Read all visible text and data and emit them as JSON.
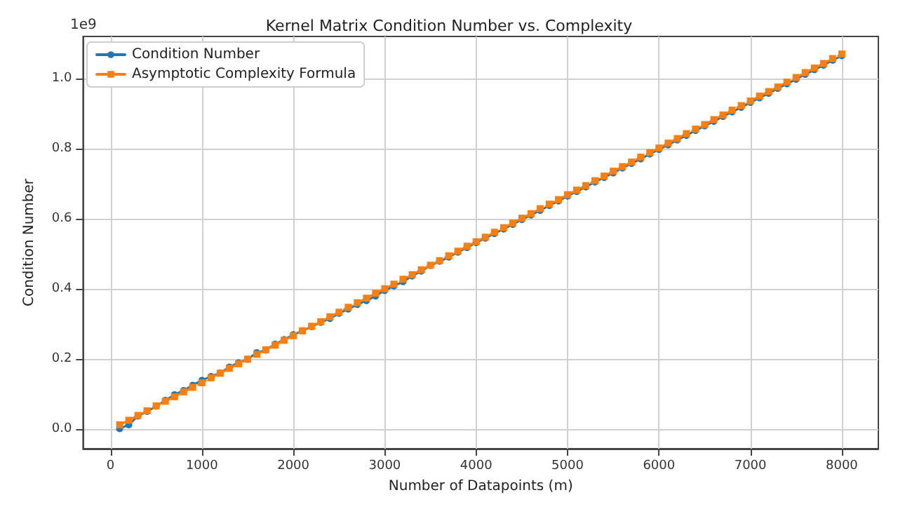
{
  "chart_data": {
    "type": "line",
    "title": "Kernel Matrix Condition Number vs. Complexity",
    "xlabel": "Number of Datapoints (m)",
    "ylabel": "Condition Number",
    "annotations": [
      "1e9"
    ],
    "x": [
      100,
      200,
      300,
      400,
      500,
      600,
      700,
      800,
      900,
      1000,
      1100,
      1200,
      1300,
      1400,
      1500,
      1600,
      1700,
      1800,
      1900,
      2000,
      2100,
      2200,
      2300,
      2400,
      2500,
      2600,
      2700,
      2800,
      2900,
      3000,
      3100,
      3200,
      3300,
      3400,
      3500,
      3600,
      3700,
      3800,
      3900,
      4000,
      4100,
      4200,
      4300,
      4400,
      4500,
      4600,
      4700,
      4800,
      4900,
      5000,
      5100,
      5200,
      5300,
      5400,
      5500,
      5600,
      5700,
      5800,
      5900,
      6000,
      6100,
      6200,
      6300,
      6400,
      6500,
      6600,
      6700,
      6800,
      6900,
      7000,
      7100,
      7200,
      7300,
      7400,
      7500,
      7600,
      7700,
      7800,
      7900,
      8000
    ],
    "series": [
      {
        "name": "Condition Number",
        "color": "#1f77b4",
        "marker": "circle",
        "line_style": "solid",
        "values": [
          0.002,
          0.013,
          0.038,
          0.051,
          0.066,
          0.083,
          0.099,
          0.111,
          0.126,
          0.14,
          0.151,
          0.161,
          0.178,
          0.19,
          0.2,
          0.219,
          0.226,
          0.243,
          0.256,
          0.27,
          0.281,
          0.293,
          0.305,
          0.316,
          0.331,
          0.343,
          0.356,
          0.367,
          0.38,
          0.396,
          0.409,
          0.421,
          0.437,
          0.451,
          0.467,
          0.479,
          0.491,
          0.505,
          0.518,
          0.532,
          0.545,
          0.558,
          0.571,
          0.584,
          0.598,
          0.611,
          0.624,
          0.638,
          0.651,
          0.665,
          0.678,
          0.691,
          0.705,
          0.718,
          0.731,
          0.745,
          0.758,
          0.771,
          0.785,
          0.798,
          0.811,
          0.825,
          0.838,
          0.852,
          0.865,
          0.878,
          0.892,
          0.905,
          0.918,
          0.932,
          0.945,
          0.958,
          0.972,
          0.985,
          0.998,
          1.012,
          1.025,
          1.038,
          1.052,
          1.065
        ]
      },
      {
        "name": "Asymptotic Complexity Formula",
        "color": "#ff7f0e",
        "marker": "square",
        "line_style": "dashed",
        "values": [
          0.013,
          0.026,
          0.04,
          0.053,
          0.067,
          0.08,
          0.093,
          0.107,
          0.12,
          0.133,
          0.147,
          0.16,
          0.174,
          0.187,
          0.2,
          0.214,
          0.227,
          0.24,
          0.254,
          0.267,
          0.281,
          0.294,
          0.307,
          0.321,
          0.334,
          0.348,
          0.361,
          0.374,
          0.388,
          0.401,
          0.414,
          0.428,
          0.441,
          0.455,
          0.468,
          0.481,
          0.495,
          0.508,
          0.522,
          0.535,
          0.548,
          0.562,
          0.575,
          0.588,
          0.602,
          0.615,
          0.629,
          0.642,
          0.655,
          0.669,
          0.682,
          0.695,
          0.709,
          0.722,
          0.736,
          0.749,
          0.762,
          0.776,
          0.789,
          0.802,
          0.816,
          0.829,
          0.843,
          0.856,
          0.869,
          0.883,
          0.896,
          0.91,
          0.923,
          0.936,
          0.95,
          0.963,
          0.976,
          0.99,
          1.003,
          1.017,
          1.03,
          1.043,
          1.057,
          1.07
        ]
      }
    ],
    "xlim": [
      -300,
      8400
    ],
    "xticks": [
      0,
      1000,
      2000,
      3000,
      4000,
      5000,
      6000,
      7000,
      8000
    ],
    "ylim": [
      -0.055,
      1.12
    ],
    "yticks": [
      {
        "value": 0,
        "label": "0.0"
      },
      {
        "value": 0.2,
        "label": "0.2"
      },
      {
        "value": 0.4,
        "label": "0.4"
      },
      {
        "value": 0.6,
        "label": "0.6"
      },
      {
        "value": 0.8,
        "label": "0.8"
      },
      {
        "value": 1,
        "label": "1.0"
      }
    ],
    "grid": true,
    "legend": "top left"
  }
}
